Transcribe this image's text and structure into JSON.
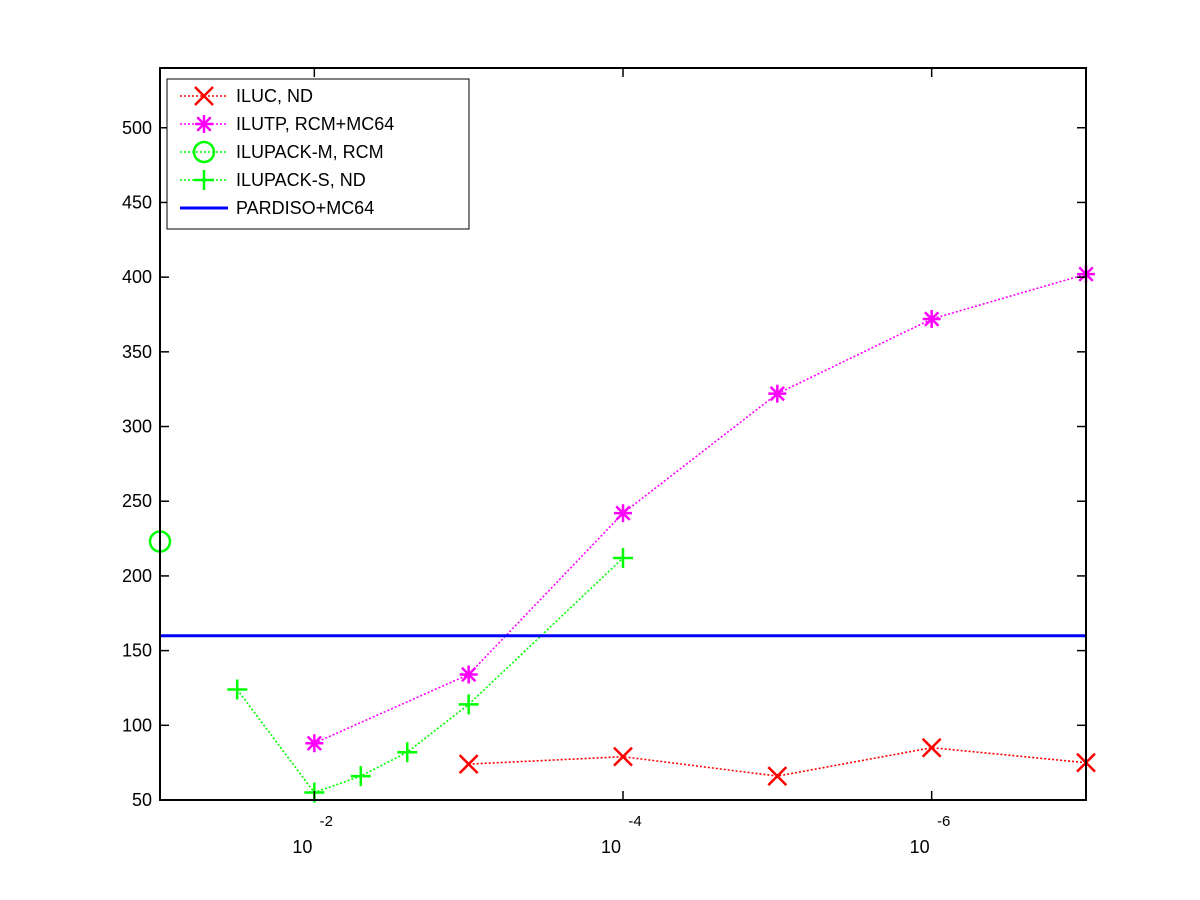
{
  "chart_data": {
    "type": "line",
    "title": "",
    "xlabel": "",
    "ylabel": "",
    "x_scale": "log-reversed",
    "xlim": [
      0.1,
      1e-07
    ],
    "ylim": [
      50,
      540
    ],
    "y_ticks": [
      50,
      100,
      150,
      200,
      250,
      300,
      350,
      400,
      450,
      500
    ],
    "x_ticks": [
      {
        "value": 0.01,
        "base": "10",
        "exponent": "-2"
      },
      {
        "value": 0.0001,
        "base": "10",
        "exponent": "-4"
      },
      {
        "value": 1e-06,
        "base": "10",
        "exponent": "-6"
      }
    ],
    "grid": false,
    "legend_position": "top-left",
    "series": [
      {
        "name": "ILUC,  ND",
        "color": "#ff0000",
        "marker": "x",
        "line": "dotted",
        "x": [
          0.001,
          0.0001,
          1e-05,
          1e-06,
          1e-07
        ],
        "y": [
          74,
          79,
          66,
          85,
          75
        ]
      },
      {
        "name": "ILUTP, RCM+MC64",
        "color": "#ff00ff",
        "marker": "asterisk",
        "line": "dotted",
        "x": [
          0.01,
          0.001,
          0.0001,
          1e-05,
          1e-06,
          1e-07
        ],
        "y": [
          88,
          134,
          242,
          322,
          372,
          402
        ]
      },
      {
        "name": "ILUPACK-M, RCM",
        "color": "#00ff00",
        "marker": "circle",
        "line": "dotted",
        "x": [
          0.1
        ],
        "y": [
          223
        ]
      },
      {
        "name": "ILUPACK-S, ND",
        "color": "#00ff00",
        "marker": "plus",
        "line": "dotted",
        "x": [
          0.0316,
          0.01,
          0.005,
          0.0025,
          0.001,
          0.0001
        ],
        "y": [
          124,
          55,
          66,
          82,
          114,
          212
        ]
      },
      {
        "name": "PARDISO+MC64",
        "color": "#0000ff",
        "marker": "none",
        "line": "solid",
        "x": [
          0.1,
          1e-07
        ],
        "y": [
          160,
          160
        ]
      }
    ]
  }
}
